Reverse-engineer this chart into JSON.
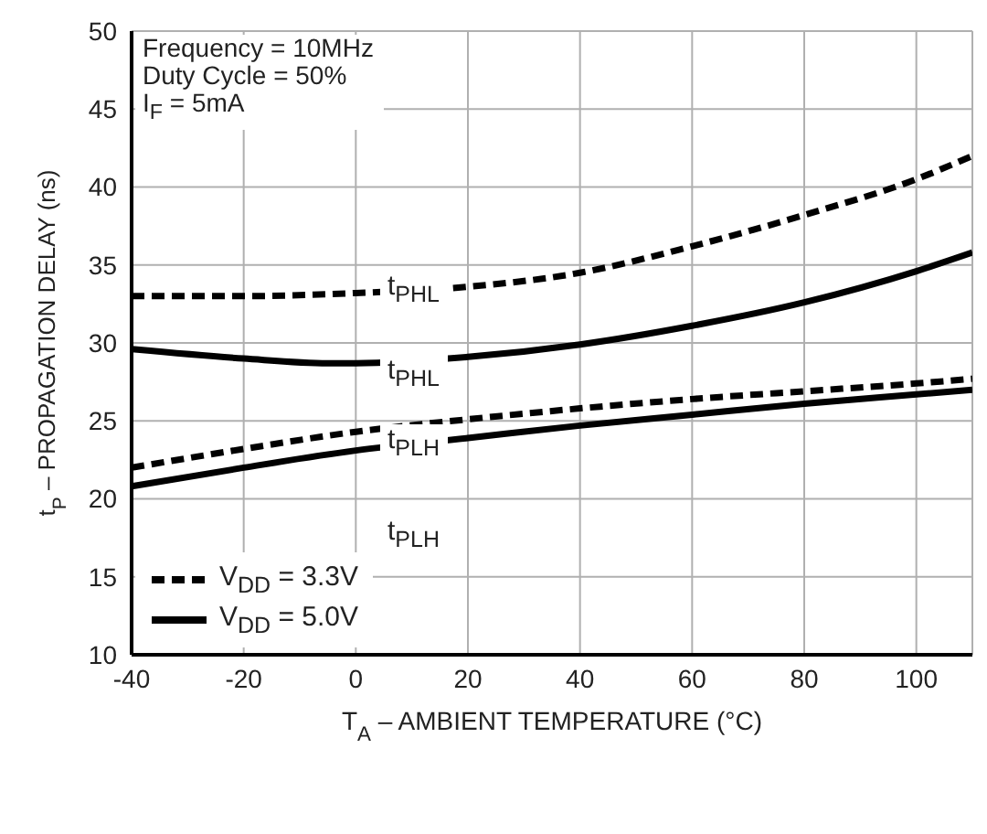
{
  "chart_data": {
    "type": "line",
    "xlabel": "T$_{A}$ – AMBIENT TEMPERATURE (°C)",
    "ylabel": "t$_{P}$ – PROPAGATION DELAY (ns)",
    "xlim": [
      -40,
      110
    ],
    "xticks": [
      -40,
      -20,
      0,
      20,
      40,
      60,
      80,
      100
    ],
    "ylim": [
      10,
      50
    ],
    "yticks": [
      10,
      15,
      20,
      25,
      30,
      35,
      40,
      45,
      50
    ],
    "grid": true,
    "legend": "bottom left",
    "series": [
      {
        "name": "V$_{DD}$ = 3.3V",
        "color": "#000000",
        "line_style": "dashed",
        "x": [
          -40,
          -20,
          0,
          20,
          40,
          60,
          80,
          100,
          110
        ],
        "values": [
          33,
          33,
          33.2,
          33.6,
          34.5,
          36.2,
          38.2,
          40.5,
          42
        ]
      },
      {
        "color": "#000000",
        "line_style": "dashed",
        "x": [
          -40,
          -20,
          0,
          20,
          40,
          60,
          80,
          100,
          110
        ],
        "values": [
          22,
          23.2,
          24.3,
          25.1,
          25.8,
          26.4,
          26.9,
          27.4,
          27.7
        ]
      },
      {
        "name": "V$_{DD}$ = 5.0V",
        "color": "#000000",
        "line_style": "solid",
        "x": [
          -40,
          -20,
          -5,
          0,
          20,
          40,
          60,
          80,
          100,
          110
        ],
        "values": [
          29.6,
          29,
          28.7,
          28.7,
          29.1,
          29.9,
          31.1,
          32.6,
          34.6,
          35.8
        ]
      },
      {
        "color": "#000000",
        "line_style": "solid",
        "x": [
          -40,
          -20,
          0,
          20,
          40,
          60,
          80,
          100,
          110
        ],
        "values": [
          20.8,
          22,
          23.1,
          23.9,
          24.7,
          25.4,
          26.1,
          26.7,
          27
        ]
      }
    ],
    "annotations": [
      "Frequency = 10MHz",
      "Duty Cycle = 50%",
      "I$_{F}$ = 5mA",
      "t$_{PHL}$",
      "t$_{PHL}$",
      "t$_{PLH}$",
      "t$_{PLH}$"
    ]
  }
}
